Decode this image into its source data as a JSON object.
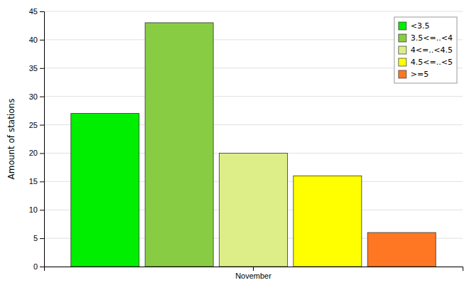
{
  "chart_data": {
    "type": "bar",
    "categories": [
      "November"
    ],
    "series": [
      {
        "name": "<3.5",
        "color": "#00EE00",
        "values": [
          27
        ]
      },
      {
        "name": "3.5<=..<4",
        "color": "#88CC44",
        "values": [
          43
        ]
      },
      {
        "name": "4<=..<4.5",
        "color": "#DDEE88",
        "values": [
          20
        ]
      },
      {
        "name": "4.5<=..<5",
        "color": "#FFFF00",
        "values": [
          16
        ]
      },
      {
        "name": ">=5",
        "color": "#FF7722",
        "values": [
          6
        ]
      }
    ],
    "ylabel": "Amount of stations",
    "ylim": [
      0,
      45
    ],
    "yticks": [
      0,
      5,
      10,
      15,
      20,
      25,
      30,
      35,
      40,
      45
    ],
    "grid": true,
    "legend": "upper right"
  }
}
